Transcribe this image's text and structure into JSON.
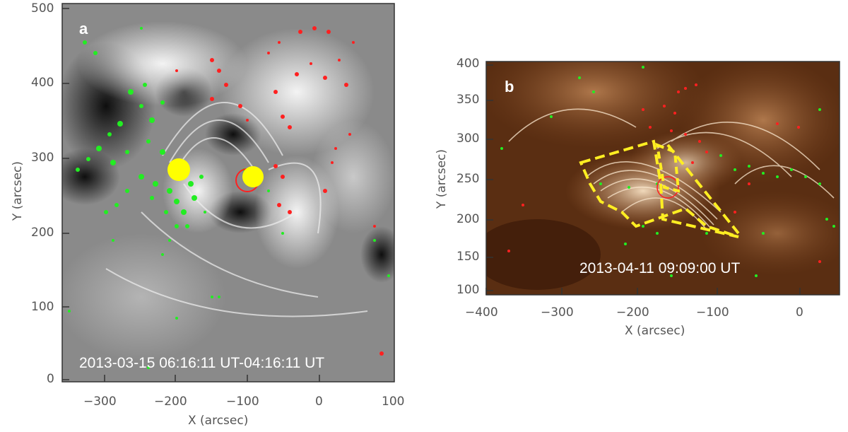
{
  "panels": [
    {
      "letter": "a",
      "timestamp": "2013-03-15 06:16:11 UT-04:16:11 UT",
      "xlabel": "X (arcsec)",
      "ylabel": "Y (arcsec)",
      "xticks": [
        "−300",
        "−200",
        "−100",
        "0",
        "100"
      ],
      "yticks": [
        "0",
        "100",
        "200",
        "300",
        "400",
        "500"
      ],
      "colors": {
        "positive": "#ff2020",
        "negative": "#22ee22",
        "marker": "#ffff00"
      }
    },
    {
      "letter": "b",
      "timestamp": "2013-04-11 09:09:00 UT",
      "xlabel": "X (arcsec)",
      "ylabel": "Y (arcsec)",
      "xticks": [
        "−400",
        "−300",
        "−200",
        "−100",
        "0"
      ],
      "yticks": [
        "100",
        "150",
        "200",
        "250",
        "300",
        "350",
        "400"
      ],
      "colors": {
        "background": "#5a2e12",
        "loops": "#f4d9b8",
        "contour": "#ffee22"
      }
    }
  ]
}
